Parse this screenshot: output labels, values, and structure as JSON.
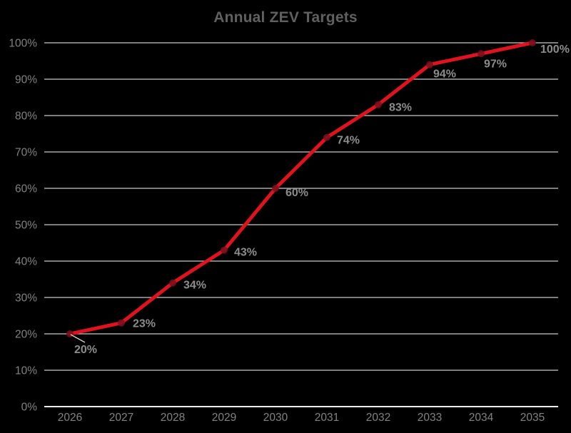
{
  "title": "Annual ZEV Targets",
  "colors": {
    "background": "#000000",
    "title": "#606060",
    "axis_label": "#828282",
    "data_label": "#8c8c8c",
    "gridline": "#c9c9c9",
    "axis_line": "#ededed",
    "series_line": "#e0121c",
    "marker": "#7a0f1d",
    "leader_line": "#cfcfcf"
  },
  "chart_data": {
    "type": "line",
    "title": "Annual ZEV Targets",
    "categories": [
      "2026",
      "2027",
      "2028",
      "2029",
      "2030",
      "2031",
      "2032",
      "2033",
      "2034",
      "2035"
    ],
    "series": [
      {
        "name": "Annual ZEV Targets",
        "values": [
          20,
          23,
          34,
          43,
          60,
          74,
          83,
          94,
          97,
          100
        ]
      }
    ],
    "data_labels": [
      "20%",
      "23%",
      "34%",
      "43%",
      "60%",
      "74%",
      "83%",
      "94%",
      "97%",
      "100%"
    ],
    "xlabel": "",
    "ylabel": "",
    "ylim": [
      0,
      100
    ],
    "ytick_step": 10,
    "ytick_labels": [
      "0%",
      "10%",
      "20%",
      "30%",
      "40%",
      "50%",
      "60%",
      "70%",
      "80%",
      "90%",
      "100%"
    ],
    "grid": true,
    "legend": false
  }
}
